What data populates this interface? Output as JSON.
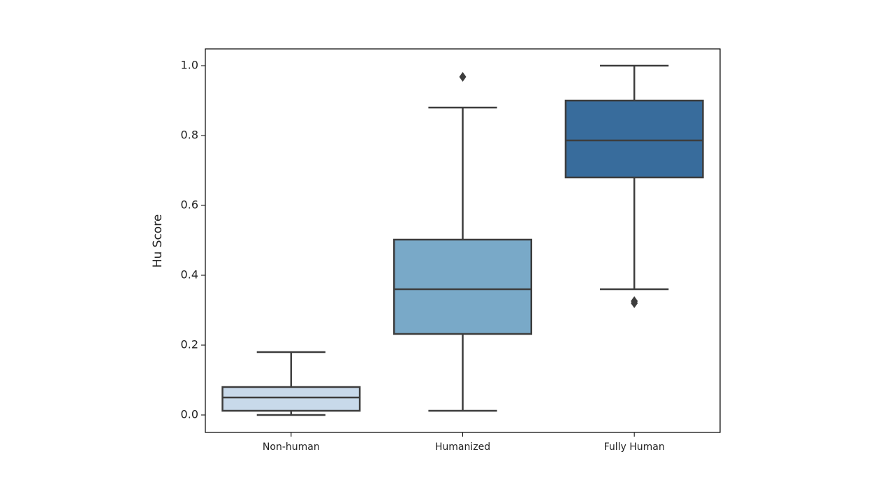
{
  "chart_data": {
    "type": "box",
    "y_label": "Hu Score",
    "categories": [
      "Non-human",
      "Humanized",
      "Fully Human"
    ],
    "colors": [
      "#c8d9ea",
      "#79a9c8",
      "#386c9c"
    ],
    "boxes": [
      {
        "whislo": 0.0,
        "q1": 0.012,
        "med": 0.05,
        "q3": 0.08,
        "whishi": 0.18,
        "fliers": []
      },
      {
        "whislo": 0.012,
        "q1": 0.232,
        "med": 0.36,
        "q3": 0.502,
        "whishi": 0.88,
        "fliers": [
          0.968
        ]
      },
      {
        "whislo": 0.36,
        "q1": 0.68,
        "med": 0.786,
        "q3": 0.9,
        "whishi": 1.0,
        "fliers": [
          0.326,
          0.32
        ]
      }
    ],
    "ylim": [
      -0.05,
      1.048
    ],
    "yticks": [
      {
        "value": 0,
        "label": "0.0"
      },
      {
        "value": 0.2,
        "label": "0.2"
      },
      {
        "value": 0.4,
        "label": "0.4"
      },
      {
        "value": 0.6,
        "label": "0.6"
      },
      {
        "value": 0.8,
        "label": "0.8"
      },
      {
        "value": 1,
        "label": "1.0"
      }
    ],
    "grid": false
  }
}
